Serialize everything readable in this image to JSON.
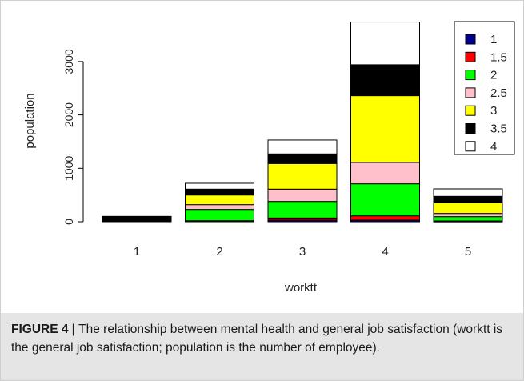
{
  "chart_data": {
    "type": "bar",
    "stacked": true,
    "categories": [
      "1",
      "2",
      "3",
      "4",
      "5"
    ],
    "xlabel": "worktt",
    "ylabel": "population",
    "ylim": [
      0,
      3800
    ],
    "yticks": [
      0,
      1000,
      2000,
      3000
    ],
    "legend_placement": "top-right",
    "grid": false,
    "series": [
      {
        "name": "1",
        "color": "#00008b",
        "values": [
          0,
          10,
          30,
          30,
          5
        ]
      },
      {
        "name": "1.5",
        "color": "#ff0000",
        "values": [
          0,
          10,
          40,
          80,
          10
        ]
      },
      {
        "name": "2",
        "color": "#00ff00",
        "values": [
          0,
          210,
          310,
          600,
          80
        ]
      },
      {
        "name": "2.5",
        "color": "#ffc0cb",
        "values": [
          0,
          90,
          230,
          400,
          60
        ]
      },
      {
        "name": "3",
        "color": "#ffff00",
        "values": [
          0,
          180,
          480,
          1250,
          200
        ]
      },
      {
        "name": "3.5",
        "color": "#000000",
        "values": [
          100,
          110,
          180,
          580,
          120
        ]
      },
      {
        "name": "4",
        "color": "#ffffff",
        "values": [
          0,
          110,
          260,
          800,
          140
        ]
      }
    ]
  },
  "caption": {
    "label": "FIGURE 4 |",
    "text": " The relationship between mental health and general job satisfaction (worktt is the general job satisfaction; population is the number of employee)."
  }
}
